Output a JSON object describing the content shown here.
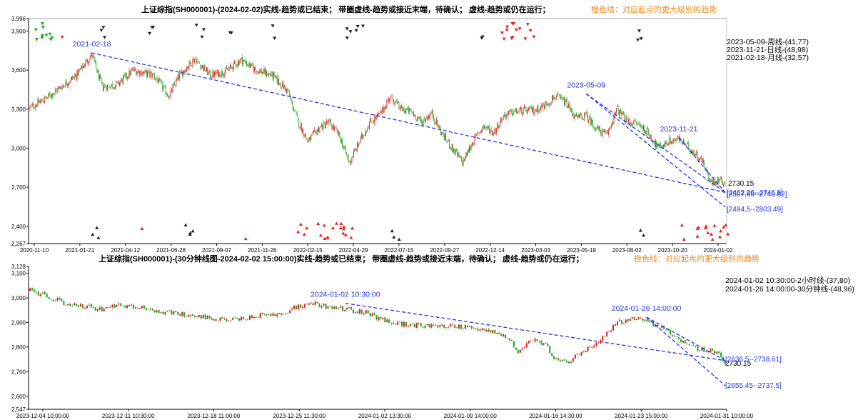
{
  "colors": {
    "up": "#e02020",
    "down": "#1fa51f",
    "trend": "#2233ee",
    "axis": "#000000",
    "title_text": "#000000",
    "title_orange": "#f08a1c",
    "marker_red": "#ee2222",
    "marker_black": "#222222"
  },
  "chart_data": [
    {
      "type": "candlestick",
      "title": "上证综指(SH000001)-(2024-02-02)实线-趋势或已结束；  带圈虚线-趋势或接近末端，待确认；  虚线-趋势或仍在运行；",
      "title_note": "橙色线：对应起点的更大级别的趋势",
      "ylim": [
        2267,
        3996
      ],
      "y_ticks": [
        "3,996",
        "3,900",
        "3,600",
        "3,300",
        "3,000",
        "2,700",
        "2,400",
        "2,267"
      ],
      "y_tick_values": [
        3996,
        3900,
        3600,
        3300,
        3000,
        2700,
        2400,
        2267
      ],
      "x_ticks": [
        "2020-11-10",
        "2021-01-21",
        "2021-04-12",
        "2021-06-28",
        "2021-09-07",
        "2021-11-26",
        "2022-02-15",
        "2022-04-29",
        "2022-07-15",
        "2022-09-27",
        "2022-12-14",
        "2023-03-03",
        "2023-05-19",
        "2023-08-02",
        "2023-10-20",
        "2024-01-02"
      ],
      "price_path": [
        [
          0,
          3310
        ],
        [
          3,
          3380
        ],
        [
          6,
          3470
        ],
        [
          9,
          3560
        ],
        [
          12,
          3720
        ],
        [
          14,
          3470
        ],
        [
          17,
          3490
        ],
        [
          20,
          3600
        ],
        [
          24,
          3560
        ],
        [
          27,
          3400
        ],
        [
          29,
          3560
        ],
        [
          32,
          3690
        ],
        [
          35,
          3560
        ],
        [
          38,
          3590
        ],
        [
          41,
          3680
        ],
        [
          44,
          3600
        ],
        [
          47,
          3560
        ],
        [
          50,
          3440
        ],
        [
          52,
          3210
        ],
        [
          54,
          3050
        ],
        [
          56,
          3150
        ],
        [
          58,
          3200
        ],
        [
          60,
          3100
        ],
        [
          62,
          2890
        ],
        [
          64,
          3050
        ],
        [
          66,
          3200
        ],
        [
          68,
          3260
        ],
        [
          70,
          3400
        ],
        [
          72,
          3300
        ],
        [
          74,
          3280
        ],
        [
          76,
          3200
        ],
        [
          78,
          3270
        ],
        [
          80,
          3110
        ],
        [
          82,
          3000
        ],
        [
          84,
          2890
        ],
        [
          86,
          3050
        ],
        [
          88,
          3170
        ],
        [
          90,
          3120
        ],
        [
          92,
          3250
        ],
        [
          94,
          3280
        ],
        [
          96,
          3290
        ],
        [
          98,
          3290
        ],
        [
          100,
          3330
        ],
        [
          102,
          3400
        ],
        [
          104,
          3350
        ],
        [
          106,
          3230
        ],
        [
          108,
          3250
        ],
        [
          110,
          3150
        ],
        [
          112,
          3100
        ],
        [
          114,
          3300
        ],
        [
          116,
          3200
        ],
        [
          118,
          3190
        ],
        [
          120,
          3120
        ],
        [
          122,
          3000
        ],
        [
          124,
          3050
        ],
        [
          126,
          3070
        ],
        [
          128,
          3000
        ],
        [
          130,
          2930
        ],
        [
          131,
          2870
        ],
        [
          132,
          2740
        ],
        [
          134,
          2760
        ],
        [
          135,
          2730
        ]
      ],
      "candle_count": 800,
      "last_price": "2730.15",
      "trend_lines": [
        {
          "from_label": "2021-02-18",
          "from": [
            12,
            3732
          ],
          "to": [
            135,
            2660
          ]
        },
        {
          "from_label": "2023-05-09",
          "from": [
            108,
            3418
          ],
          "to": [
            135,
            2660
          ]
        },
        {
          "from_label": "2023-11-21",
          "from": [
            126,
            3080
          ],
          "to": [
            135,
            2660
          ]
        },
        {
          "from_label": "",
          "from": [
            108,
            3418
          ],
          "to": [
            135,
            2548
          ]
        }
      ],
      "trend_labels": [
        "2021-02-18",
        "2023-05-09",
        "2023-11-21"
      ],
      "legend_lines": [
        "2023-05-09-周线-(41,77)",
        "2023-11-21-日线-(48,98)",
        "2021-02-18-月线-(32,57)"
      ],
      "range_labels": [
        "[2507.86--2740.82]",
        "[2462.26--2746.8]",
        "[2494.5--2803.49]"
      ],
      "top_marker_clusters": [
        {
          "x": 3,
          "color": "down",
          "count": 10
        },
        {
          "x": 14,
          "color": "black",
          "count": 3
        },
        {
          "x": 24,
          "color": "black",
          "count": 3
        },
        {
          "x": 33,
          "color": "black",
          "count": 3
        },
        {
          "x": 39,
          "color": "black",
          "count": 2
        },
        {
          "x": 47,
          "color": "black",
          "count": 2
        },
        {
          "x": 63,
          "color": "black",
          "count": 6
        },
        {
          "x": 88,
          "color": "black",
          "count": 2
        },
        {
          "x": 95,
          "color": "red",
          "count": 14
        },
        {
          "x": 118,
          "color": "black",
          "count": 3
        },
        {
          "x": 6,
          "color": "red",
          "count": 1
        }
      ],
      "bottom_marker_clusters": [
        {
          "x": 13,
          "color": "black",
          "count": 3
        },
        {
          "x": 22,
          "color": "red",
          "count": 1
        },
        {
          "x": 31,
          "color": "black",
          "count": 4
        },
        {
          "x": 42,
          "color": "red",
          "count": 1
        },
        {
          "x": 53,
          "color": "red",
          "count": 4
        },
        {
          "x": 59,
          "color": "red",
          "count": 16
        },
        {
          "x": 71,
          "color": "black",
          "count": 3
        },
        {
          "x": 119,
          "color": "black",
          "count": 2
        },
        {
          "x": 127,
          "color": "red",
          "count": 2
        },
        {
          "x": 132,
          "color": "red",
          "count": 14
        }
      ]
    },
    {
      "type": "candlestick",
      "title": "上证综指(SH000001)-(30分钟线图-2024-02-02 15:00:00)实线-趋势或已结束；  带圈虚线-趋势或接近末端，待确认；  虚线-趋势或仍在运行；",
      "title_note": "橙色线：对应起点的更大级别的趋势",
      "ylim": [
        2547,
        3128
      ],
      "y_ticks": [
        "3,128",
        "3,100",
        "3,000",
        "2,900",
        "2,800",
        "2,700",
        "2,600",
        "2,547"
      ],
      "y_tick_values": [
        3128,
        3100,
        3000,
        2900,
        2800,
        2700,
        2600,
        2547
      ],
      "x_ticks": [
        "2023-12-04 10:00:00",
        "2023-12-11 10:30:00",
        "2023-12-18 11:00:00",
        "2023-12-25 11:30:00",
        "2024-01-02 13:30:00",
        "2024-01-09 14:00:00",
        "2024-01-16 14:30:00",
        "2024-01-23 15:00:00",
        "2024-01-31 10:00:00"
      ],
      "price_path": [
        [
          0,
          3030
        ],
        [
          3,
          3000
        ],
        [
          5,
          2975
        ],
        [
          8,
          2965
        ],
        [
          10,
          2950
        ],
        [
          12,
          2970
        ],
        [
          15,
          2960
        ],
        [
          18,
          2945
        ],
        [
          21,
          2935
        ],
        [
          24,
          2925
        ],
        [
          26,
          2910
        ],
        [
          29,
          2915
        ],
        [
          32,
          2930
        ],
        [
          35,
          2935
        ],
        [
          37,
          2960
        ],
        [
          40,
          2975
        ],
        [
          42,
          2960
        ],
        [
          44,
          2955
        ],
        [
          47,
          2940
        ],
        [
          50,
          2900
        ],
        [
          53,
          2890
        ],
        [
          56,
          2885
        ],
        [
          59,
          2885
        ],
        [
          62,
          2880
        ],
        [
          65,
          2860
        ],
        [
          67,
          2830
        ],
        [
          68,
          2780
        ],
        [
          70,
          2830
        ],
        [
          72,
          2810
        ],
        [
          73,
          2760
        ],
        [
          75,
          2740
        ],
        [
          77,
          2780
        ],
        [
          80,
          2840
        ],
        [
          82,
          2900
        ],
        [
          84,
          2915
        ],
        [
          86,
          2905
        ],
        [
          88,
          2880
        ],
        [
          90,
          2840
        ],
        [
          92,
          2800
        ],
        [
          94,
          2790
        ],
        [
          96,
          2780
        ],
        [
          97,
          2730
        ]
      ],
      "candle_count": 330,
      "last_price": "2730.15",
      "trend_lines": [
        {
          "from_label": "2024-01-02 10:30:00",
          "from": [
            44,
            2978
          ],
          "to": [
            97,
            2745
          ]
        },
        {
          "from_label": "2024-01-26 14:00:00",
          "from": [
            86,
            2922
          ],
          "to": [
            97,
            2745
          ]
        },
        {
          "from_label": "",
          "from": [
            86,
            2922
          ],
          "to": [
            97,
            2643
          ]
        }
      ],
      "trend_labels": [
        "2024-01-02 10:30:00",
        "2024-01-26 14:00:00"
      ],
      "legend_lines": [
        "2024-01-02 10:30:00-2小时线-(37,80)",
        "2024-01-26 14:00:00-30分钟线-(48,96)"
      ],
      "range_labels": [
        "[2636.5--2738.61]",
        "[2655.45--2737.5]"
      ]
    }
  ]
}
